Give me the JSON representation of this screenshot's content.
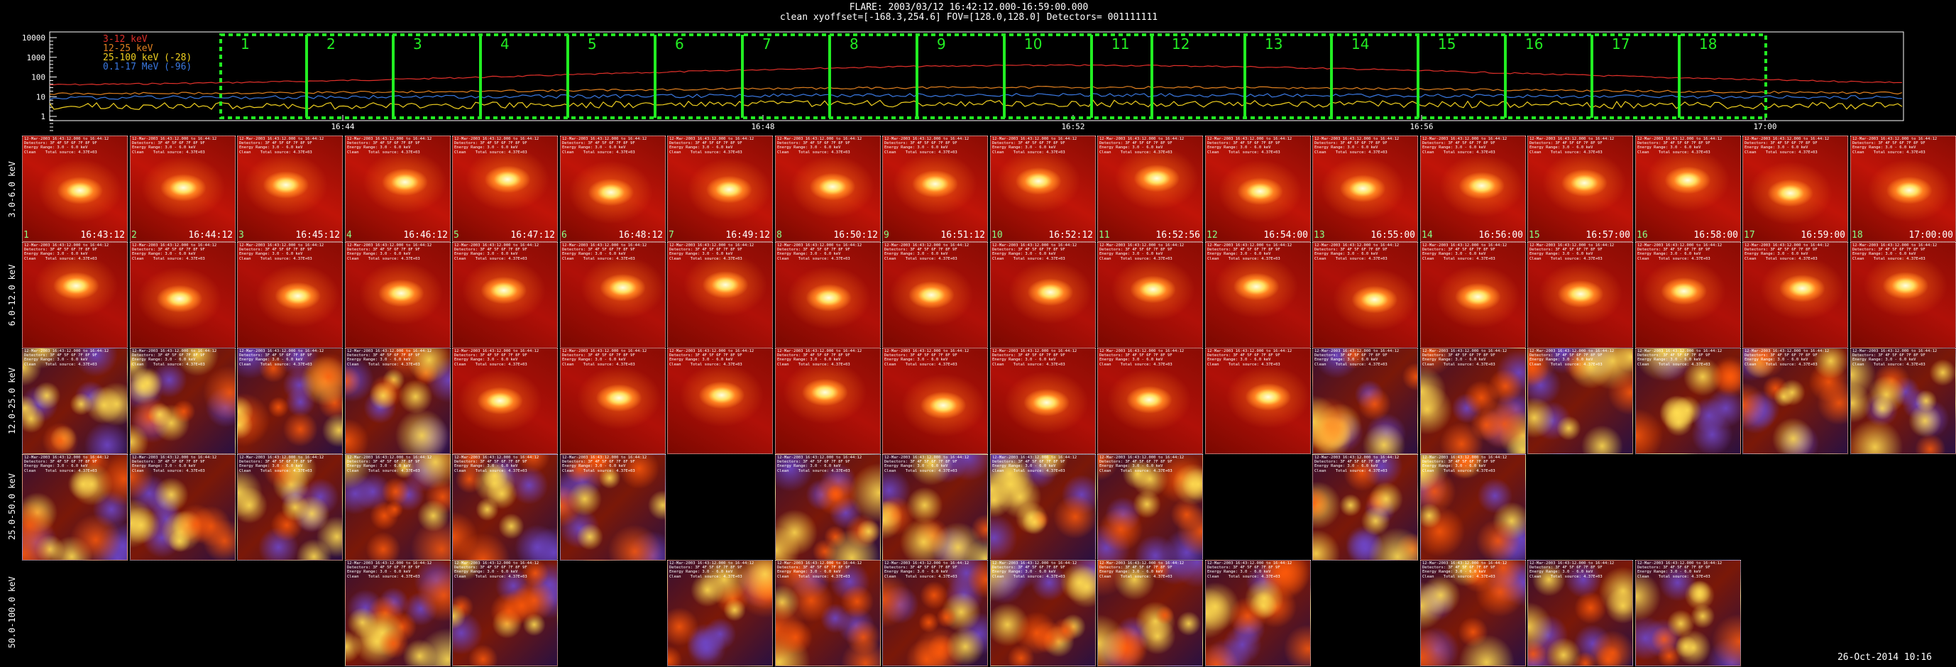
{
  "header": {
    "line1": "FLARE: 2003/03/12 16:42:12.000-16:59:00.000",
    "line2": "clean   xyoffset=[-168.3,254.6]  FOV=[128.0,128.0]   Detectors= 001111111"
  },
  "lightcurve": {
    "ylabels": [
      "10000",
      "1000",
      "100",
      "10",
      "1"
    ],
    "legend": [
      {
        "label": "3-12 keV",
        "color": "#e0302a"
      },
      {
        "label": "12-25 keV",
        "color": "#e08020"
      },
      {
        "label": "25-100 keV (-28)",
        "color": "#f0d020"
      },
      {
        "label": "0.1-17 MeV (-96)",
        "color": "#3a78e0"
      }
    ],
    "xticks": [
      "16:44",
      "16:48",
      "16:52",
      "16:56",
      "17:00"
    ],
    "box_numbers": [
      "1",
      "2",
      "3",
      "4",
      "5",
      "6",
      "7",
      "8",
      "9",
      "10",
      "11",
      "12",
      "13",
      "14",
      "15",
      "16",
      "17",
      "18"
    ],
    "box_color": "#22ee22"
  },
  "rows": [
    {
      "label": "3.0-6.0 keV"
    },
    {
      "label": "6.0-12.0 keV"
    },
    {
      "label": "12.0-25.0 keV"
    },
    {
      "label": "25.0-50.0 keV"
    },
    {
      "label": "50.0-100.0 keV"
    }
  ],
  "times": [
    "16:43:12",
    "16:44:12",
    "16:45:12",
    "16:46:12",
    "16:47:12",
    "16:48:12",
    "16:49:12",
    "16:50:12",
    "16:51:12",
    "16:52:12",
    "16:52:56",
    "16:54:00",
    "16:55:00",
    "16:56:00",
    "16:57:00",
    "16:58:00",
    "16:59:00",
    "17:00:00"
  ],
  "cell_overlay": [
    "12-Mar-2003 16:43:12.000 to 16:44:12",
    "Detectors: 3F 4F 5F 6F 7F 8F 9F",
    "Energy Range: 3.0 - 6.0 keV",
    "Clean    Total source: 4.37E+03"
  ],
  "datestamp": "26-Oct-2014  10:16"
}
